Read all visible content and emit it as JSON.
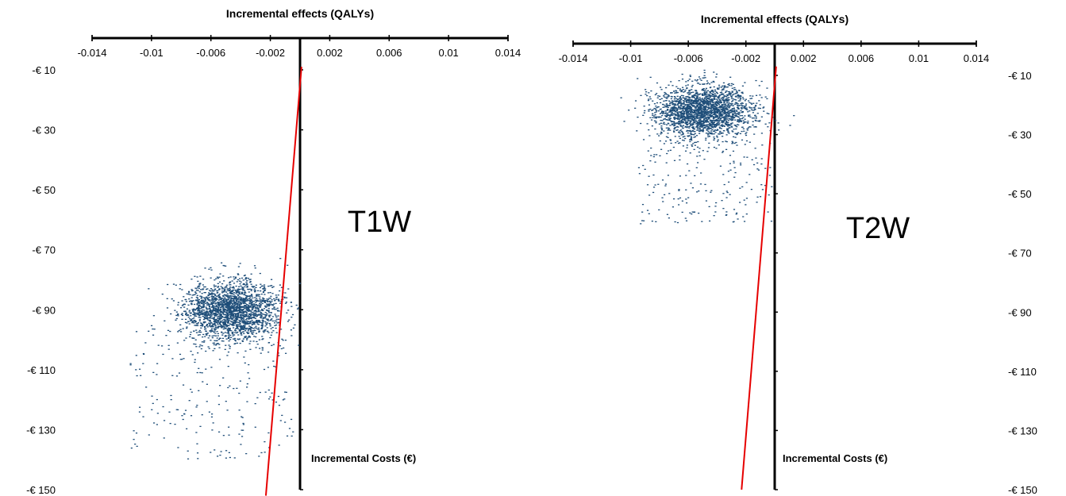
{
  "chart_data": [
    {
      "type": "scatter",
      "panel_label": "T1W",
      "title": "",
      "xlabel": "Incremental effects (QALYs)",
      "ylabel": "Incremental Costs (€)",
      "x_ticks": [
        "-0.014",
        "-0.01",
        "-0.006",
        "-0.002",
        "0.002",
        "0.006",
        "0.01",
        "0.014"
      ],
      "y_ticks": [
        "-€ 10",
        "-€ 30",
        "-€ 50",
        "-€ 70",
        "-€ 90",
        "-€ 110",
        "-€ 130",
        "-€ 150"
      ],
      "xlim": [
        -0.014,
        0.014
      ],
      "ylim": [
        -150,
        -10
      ],
      "y_tick_side": "left",
      "point_color": "#1f4e79",
      "cloud": {
        "n_points": 2200,
        "x_mean": -0.0047,
        "x_sd": 0.0016,
        "y_mean": -90,
        "y_sd": 5,
        "tail_points": 220,
        "tail_y_range": [
          -140,
          -95
        ],
        "tail_x_range": [
          -0.0115,
          -0.0005
        ]
      },
      "threshold_line": {
        "color": "#e60000",
        "points": [
          [
            0.0001,
            -9
          ],
          [
            -0.0023,
            -152
          ]
        ]
      },
      "grid": false,
      "legend": "none"
    },
    {
      "type": "scatter",
      "panel_label": "T2W",
      "title": "",
      "xlabel": "Incremental effects (QALYs)",
      "ylabel": "Incremental Costs (€)",
      "x_ticks": [
        "-0.014",
        "-0.01",
        "-0.006",
        "-0.002",
        "0.002",
        "0.006",
        "0.01",
        "0.014"
      ],
      "y_ticks": [
        "-€ 10",
        "-€ 30",
        "-€ 50",
        "-€ 70",
        "-€ 90",
        "-€ 110",
        "-€ 130",
        "-€ 150"
      ],
      "xlim": [
        -0.014,
        0.014
      ],
      "ylim": [
        -150,
        -10
      ],
      "y_tick_side": "right",
      "point_color": "#1f4e79",
      "cloud": {
        "n_points": 2200,
        "x_mean": -0.005,
        "x_sd": 0.0017,
        "y_mean": -22,
        "y_sd": 4.5,
        "tail_points": 200,
        "tail_y_range": [
          -60,
          -28
        ],
        "tail_x_range": [
          -0.0095,
          -0.0002
        ]
      },
      "threshold_line": {
        "color": "#e60000",
        "points": [
          [
            0.0001,
            -7
          ],
          [
            -0.0023,
            -150
          ]
        ]
      },
      "grid": false,
      "legend": "none"
    }
  ]
}
